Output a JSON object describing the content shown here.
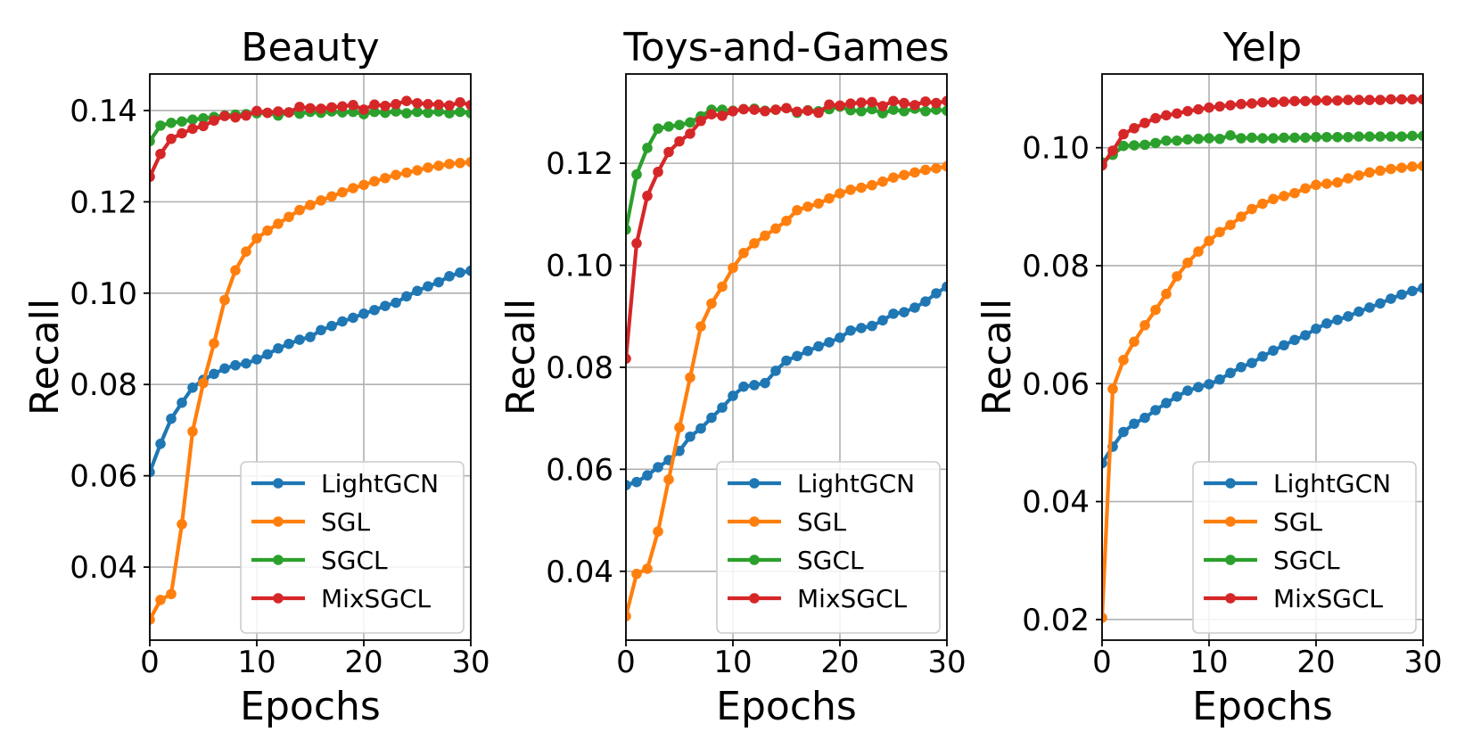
{
  "figure": {
    "x_label": "Epochs",
    "y_label": "Recall",
    "legend": [
      "LightGCN",
      "SGL",
      "SGCL",
      "MixSGCL"
    ],
    "colors": {
      "LightGCN": "#1f77b4",
      "SGL": "#ff7f0e",
      "SGCL": "#2ca02c",
      "MixSGCL": "#d62728"
    }
  },
  "chart_data": [
    {
      "type": "line",
      "title": "Beauty",
      "xlabel": "Epochs",
      "ylabel": "Recall",
      "xlim": [
        0,
        30
      ],
      "ylim": [
        0.024,
        0.148
      ],
      "xticks": [
        0,
        10,
        20,
        30
      ],
      "yticks": [
        0.04,
        0.06,
        0.08,
        0.1,
        0.12,
        0.14
      ],
      "ytick_labels": [
        "0.04",
        "0.06",
        "0.08",
        "0.10",
        "0.12",
        "0.14"
      ],
      "grid": true,
      "legend_position": "lower-right",
      "series": [
        {
          "name": "LightGCN",
          "values": [
            0.0608,
            0.067,
            0.0725,
            0.076,
            0.0793,
            0.081,
            0.0823,
            0.0835,
            0.0842,
            0.0846,
            0.0855,
            0.0866,
            0.0879,
            0.0889,
            0.0898,
            0.0904,
            0.0919,
            0.0928,
            0.0938,
            0.0946,
            0.0955,
            0.0963,
            0.0972,
            0.0979,
            0.0993,
            0.1005,
            0.1015,
            0.1024,
            0.1037,
            0.1045,
            0.1049
          ]
        },
        {
          "name": "SGL",
          "values": [
            0.0285,
            0.0328,
            0.0341,
            0.0494,
            0.0697,
            0.0803,
            0.089,
            0.0985,
            0.105,
            0.1091,
            0.112,
            0.1137,
            0.1152,
            0.1167,
            0.1182,
            0.1193,
            0.1203,
            0.1212,
            0.1221,
            0.123,
            0.1237,
            0.1245,
            0.1252,
            0.1259,
            0.1264,
            0.1269,
            0.1275,
            0.1279,
            0.1283,
            0.1285,
            0.1287
          ]
        },
        {
          "name": "SGCL",
          "values": [
            0.1333,
            0.1367,
            0.1373,
            0.1376,
            0.138,
            0.1383,
            0.1386,
            0.1389,
            0.1391,
            0.1392,
            0.1394,
            0.1395,
            0.1389,
            0.1396,
            0.1393,
            0.1397,
            0.1395,
            0.1398,
            0.1396,
            0.1397,
            0.1392,
            0.1397,
            0.1395,
            0.1398,
            0.1394,
            0.1397,
            0.1395,
            0.1398,
            0.1394,
            0.1397,
            0.1394
          ]
        },
        {
          "name": "MixSGCL",
          "values": [
            0.1255,
            0.1305,
            0.1338,
            0.135,
            0.136,
            0.1366,
            0.1378,
            0.1388,
            0.1385,
            0.1389,
            0.1399,
            0.1395,
            0.1398,
            0.1396,
            0.1408,
            0.1405,
            0.1404,
            0.1407,
            0.1409,
            0.1412,
            0.1402,
            0.1413,
            0.141,
            0.1414,
            0.1421,
            0.1416,
            0.1414,
            0.1413,
            0.1411,
            0.1418,
            0.1412
          ]
        }
      ]
    },
    {
      "type": "line",
      "title": "Toys-and-Games",
      "xlabel": "Epochs",
      "ylabel": "Recall",
      "xlim": [
        0,
        30
      ],
      "ylim": [
        0.0265,
        0.1375
      ],
      "xticks": [
        0,
        10,
        20,
        30
      ],
      "yticks": [
        0.04,
        0.06,
        0.08,
        0.1,
        0.12
      ],
      "ytick_labels": [
        "0.04",
        "0.06",
        "0.08",
        "0.10",
        "0.12"
      ],
      "grid": true,
      "legend_position": "lower-right",
      "series": [
        {
          "name": "LightGCN",
          "values": [
            0.0569,
            0.0575,
            0.0588,
            0.0604,
            0.0618,
            0.0636,
            0.0664,
            0.068,
            0.0701,
            0.0721,
            0.0744,
            0.0762,
            0.0765,
            0.0769,
            0.0793,
            0.0813,
            0.0822,
            0.0832,
            0.0841,
            0.0849,
            0.0858,
            0.0872,
            0.0877,
            0.0881,
            0.0892,
            0.0905,
            0.0908,
            0.0917,
            0.0929,
            0.0945,
            0.0958
          ]
        },
        {
          "name": "SGL",
          "values": [
            0.0312,
            0.0395,
            0.0405,
            0.0478,
            0.058,
            0.0682,
            0.078,
            0.088,
            0.0925,
            0.0958,
            0.0995,
            0.1024,
            0.1043,
            0.1058,
            0.1072,
            0.1087,
            0.1108,
            0.1115,
            0.1121,
            0.1131,
            0.1141,
            0.1148,
            0.1152,
            0.1157,
            0.1164,
            0.1172,
            0.1177,
            0.1182,
            0.1187,
            0.119,
            0.1194
          ]
        },
        {
          "name": "SGCL",
          "values": [
            0.107,
            0.1178,
            0.123,
            0.1268,
            0.1272,
            0.1275,
            0.128,
            0.1292,
            0.1305,
            0.1305,
            0.1303,
            0.1306,
            0.1307,
            0.1303,
            0.1305,
            0.1308,
            0.1299,
            0.1304,
            0.1302,
            0.1306,
            0.1311,
            0.1304,
            0.1302,
            0.1306,
            0.1298,
            0.1305,
            0.1302,
            0.1307,
            0.1302,
            0.1305,
            0.1303
          ]
        },
        {
          "name": "MixSGCL",
          "values": [
            0.0817,
            0.1043,
            0.1136,
            0.1183,
            0.1222,
            0.1243,
            0.1258,
            0.1283,
            0.1296,
            0.1293,
            0.1302,
            0.1306,
            0.1305,
            0.1302,
            0.1305,
            0.1308,
            0.1301,
            0.1303,
            0.1299,
            0.1315,
            0.1313,
            0.1317,
            0.1319,
            0.132,
            0.1312,
            0.1322,
            0.1318,
            0.1314,
            0.1321,
            0.1318,
            0.1322
          ]
        }
      ]
    },
    {
      "type": "line",
      "title": "Yelp",
      "xlabel": "Epochs",
      "ylabel": "Recall",
      "xlim": [
        0,
        30
      ],
      "ylim": [
        0.0165,
        0.1125
      ],
      "xticks": [
        0,
        10,
        20,
        30
      ],
      "yticks": [
        0.02,
        0.04,
        0.06,
        0.08,
        0.1
      ],
      "ytick_labels": [
        "0.02",
        "0.04",
        "0.06",
        "0.08",
        "0.10"
      ],
      "grid": true,
      "legend_position": "lower-right",
      "series": [
        {
          "name": "LightGCN",
          "values": [
            0.0465,
            0.0493,
            0.0518,
            0.0532,
            0.0542,
            0.0555,
            0.0567,
            0.0578,
            0.0588,
            0.0594,
            0.0599,
            0.0607,
            0.0618,
            0.0628,
            0.0635,
            0.0646,
            0.0656,
            0.0665,
            0.0674,
            0.0682,
            0.0693,
            0.0702,
            0.0708,
            0.0714,
            0.0722,
            0.0729,
            0.0736,
            0.0744,
            0.0751,
            0.0757,
            0.0762
          ]
        },
        {
          "name": "SGL",
          "values": [
            0.0203,
            0.0591,
            0.064,
            0.0671,
            0.0699,
            0.0725,
            0.0752,
            0.0782,
            0.0805,
            0.0824,
            0.0842,
            0.0857,
            0.0869,
            0.0883,
            0.0896,
            0.0905,
            0.0913,
            0.0918,
            0.0923,
            0.0931,
            0.0937,
            0.0939,
            0.0941,
            0.0948,
            0.0953,
            0.0958,
            0.0961,
            0.0964,
            0.0966,
            0.0968,
            0.0969
          ]
        },
        {
          "name": "SGCL",
          "values": [
            0.0975,
            0.0988,
            0.1003,
            0.1004,
            0.1005,
            0.1008,
            0.1012,
            0.1012,
            0.1014,
            0.1015,
            0.1016,
            0.1015,
            0.1021,
            0.1016,
            0.1017,
            0.1016,
            0.1016,
            0.1017,
            0.1017,
            0.1017,
            0.1018,
            0.1018,
            0.1018,
            0.1018,
            0.1019,
            0.1019,
            0.1019,
            0.1019,
            0.1019,
            0.102,
            0.102
          ]
        },
        {
          "name": "MixSGCL",
          "values": [
            0.097,
            0.0995,
            0.1023,
            0.1033,
            0.1042,
            0.105,
            0.1055,
            0.1058,
            0.1062,
            0.1065,
            0.1068,
            0.107,
            0.1072,
            0.1074,
            0.1075,
            0.1077,
            0.1077,
            0.1078,
            0.1079,
            0.1079,
            0.108,
            0.108,
            0.108,
            0.1081,
            0.1081,
            0.1081,
            0.1081,
            0.1082,
            0.1082,
            0.1082,
            0.1082
          ]
        }
      ]
    }
  ]
}
